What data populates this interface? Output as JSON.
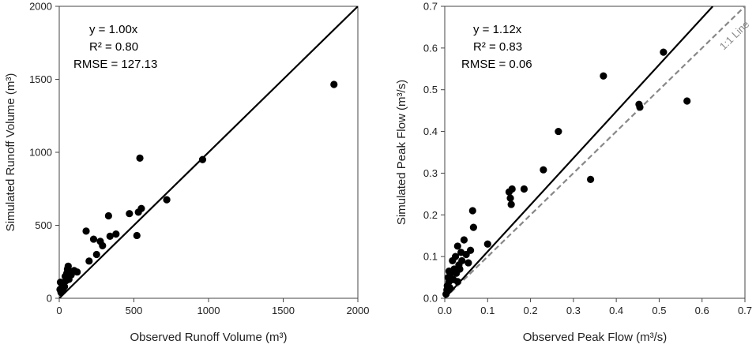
{
  "chart_data": [
    {
      "type": "scatter",
      "xlabel": "Observed Runoff Volume (m³)",
      "ylabel": "Simulated Runoff Volume (m³)",
      "xlim": [
        0,
        2000
      ],
      "ylim": [
        0,
        2000
      ],
      "xticks": [
        0,
        500,
        1000,
        1500,
        2000
      ],
      "yticks": [
        0,
        500,
        1000,
        1500,
        2000
      ],
      "xtick_labels": [
        "0",
        "500",
        "1000",
        "1500",
        "2000"
      ],
      "ytick_labels": [
        "0",
        "500",
        "1000",
        "1500",
        "2000"
      ],
      "stats": [
        "y = 1.00x",
        "R² = 0.80",
        "RMSE = 127.13"
      ],
      "fit_line": {
        "slope": 1.0,
        "x_end": 2000
      },
      "reference_line": null,
      "points": [
        [
          5,
          60
        ],
        [
          8,
          110
        ],
        [
          12,
          40
        ],
        [
          15,
          70
        ],
        [
          20,
          90
        ],
        [
          25,
          55
        ],
        [
          30,
          100
        ],
        [
          35,
          80
        ],
        [
          40,
          150
        ],
        [
          45,
          120
        ],
        [
          50,
          170
        ],
        [
          55,
          200
        ],
        [
          60,
          220
        ],
        [
          65,
          130
        ],
        [
          70,
          185
        ],
        [
          80,
          160
        ],
        [
          100,
          190
        ],
        [
          120,
          180
        ],
        [
          180,
          460
        ],
        [
          200,
          255
        ],
        [
          230,
          405
        ],
        [
          250,
          300
        ],
        [
          275,
          390
        ],
        [
          290,
          360
        ],
        [
          330,
          565
        ],
        [
          340,
          425
        ],
        [
          380,
          440
        ],
        [
          470,
          580
        ],
        [
          520,
          430
        ],
        [
          530,
          590
        ],
        [
          540,
          960
        ],
        [
          550,
          615
        ],
        [
          720,
          675
        ],
        [
          960,
          950
        ],
        [
          1840,
          1465
        ]
      ]
    },
    {
      "type": "scatter",
      "xlabel": "Observed Peak Flow (m³/s)",
      "ylabel": "Simulated Peak Flow (m³/s)",
      "xlim": [
        0,
        0.7
      ],
      "ylim": [
        0,
        0.7
      ],
      "xticks": [
        0,
        0.1,
        0.2,
        0.3,
        0.4,
        0.5,
        0.6,
        0.7
      ],
      "yticks": [
        0,
        0.1,
        0.2,
        0.3,
        0.4,
        0.5,
        0.6,
        0.7
      ],
      "xtick_labels": [
        "0.0",
        "0.1",
        "0.2",
        "0.3",
        "0.4",
        "0.5",
        "0.6",
        "0.7"
      ],
      "ytick_labels": [
        "0.0",
        "0.1",
        "0.2",
        "0.3",
        "0.4",
        "0.5",
        "0.6",
        "0.7"
      ],
      "stats": [
        "y = 1.12x",
        "R² = 0.83",
        "RMSE = 0.06"
      ],
      "fit_line": {
        "slope": 1.12,
        "x_end": 0.625
      },
      "reference_line": {
        "label": "1:1 Line",
        "slope": 1.0
      },
      "points": [
        [
          0.003,
          0.01
        ],
        [
          0.005,
          0.02
        ],
        [
          0.006,
          0.03
        ],
        [
          0.008,
          0.05
        ],
        [
          0.01,
          0.04
        ],
        [
          0.01,
          0.065
        ],
        [
          0.012,
          0.025
        ],
        [
          0.015,
          0.06
        ],
        [
          0.018,
          0.09
        ],
        [
          0.02,
          0.045
        ],
        [
          0.022,
          0.07
        ],
        [
          0.025,
          0.1
        ],
        [
          0.027,
          0.06
        ],
        [
          0.03,
          0.125
        ],
        [
          0.03,
          0.04
        ],
        [
          0.033,
          0.08
        ],
        [
          0.035,
          0.07
        ],
        [
          0.038,
          0.11
        ],
        [
          0.04,
          0.09
        ],
        [
          0.045,
          0.14
        ],
        [
          0.05,
          0.105
        ],
        [
          0.055,
          0.085
        ],
        [
          0.06,
          0.115
        ],
        [
          0.065,
          0.21
        ],
        [
          0.067,
          0.17
        ],
        [
          0.1,
          0.13
        ],
        [
          0.15,
          0.255
        ],
        [
          0.153,
          0.24
        ],
        [
          0.155,
          0.225
        ],
        [
          0.157,
          0.262
        ],
        [
          0.185,
          0.262
        ],
        [
          0.23,
          0.308
        ],
        [
          0.265,
          0.4
        ],
        [
          0.34,
          0.285
        ],
        [
          0.37,
          0.533
        ],
        [
          0.453,
          0.465
        ],
        [
          0.455,
          0.458
        ],
        [
          0.51,
          0.59
        ],
        [
          0.565,
          0.473
        ]
      ]
    }
  ]
}
